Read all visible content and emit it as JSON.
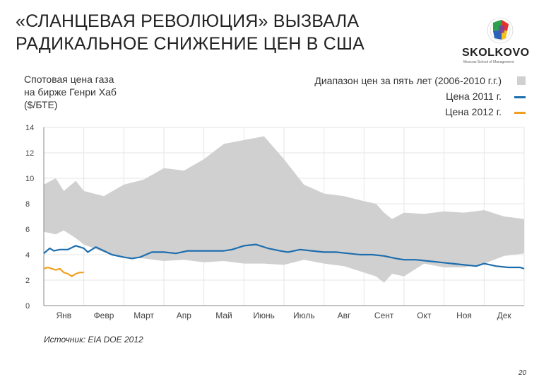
{
  "slide": {
    "title_line1": "«СЛАНЦЕВАЯ РЕВОЛЮЦИЯ» ВЫЗВАЛА",
    "title_line2": "РАДИКАЛЬНОЕ СНИЖЕНИЕ ЦЕН В США",
    "logo_text": "SKOLKOVO",
    "logo_subtext": "Moscow School of Management",
    "source": "Источник: EIA DOE 2012",
    "page_number": "20"
  },
  "chart_data": {
    "type": "area",
    "title_line1": "Спотовая цена газа",
    "title_line2": "на бирже Генри Хаб",
    "title_line3": "($/БТЕ)",
    "categories": [
      "Янв",
      "Февр",
      "Март",
      "Апр",
      "Май",
      "Июнь",
      "Июль",
      "Авг",
      "Сент",
      "Окт",
      "Ноя",
      "Дек"
    ],
    "yticks": [
      "0",
      "2",
      "4",
      "6",
      "8",
      "10",
      "12",
      "14"
    ],
    "ylim": [
      0,
      14
    ],
    "xlim": [
      0,
      12
    ],
    "grid": true,
    "legend_position": "top-right",
    "colors": {
      "range": "#d0d0d0",
      "y2011": "#1e6eae",
      "y2012": "#f0a020",
      "grid": "#e6e6e6"
    },
    "series": [
      {
        "name": "Диапазон цен за пять лет (2006-2010 г.г.)",
        "kind": "range",
        "x": [
          0,
          0.3,
          0.5,
          0.8,
          1.0,
          1.5,
          2.0,
          2.5,
          3.0,
          3.5,
          4.0,
          4.5,
          5.0,
          5.5,
          6.0,
          6.5,
          7.0,
          7.5,
          8.0,
          8.3,
          8.5,
          8.7,
          9.0,
          9.5,
          10.0,
          10.5,
          11.0,
          11.5,
          12.0
        ],
        "upper": [
          9.5,
          10.0,
          9.0,
          9.8,
          9.0,
          8.6,
          9.5,
          9.9,
          10.8,
          10.6,
          11.5,
          12.7,
          13.0,
          13.3,
          11.5,
          9.5,
          8.8,
          8.6,
          8.2,
          8.0,
          7.3,
          6.8,
          7.3,
          7.2,
          7.4,
          7.3,
          7.5,
          7.0,
          6.8
        ],
        "lower": [
          5.8,
          5.6,
          5.9,
          5.3,
          4.8,
          4.2,
          3.8,
          3.7,
          3.5,
          3.6,
          3.4,
          3.5,
          3.3,
          3.3,
          3.2,
          3.6,
          3.3,
          3.1,
          2.6,
          2.3,
          1.8,
          2.5,
          2.3,
          3.3,
          3.0,
          3.0,
          3.3,
          3.9,
          4.1
        ]
      },
      {
        "name": "Цена 2011 г.",
        "kind": "line",
        "x": [
          0,
          0.15,
          0.25,
          0.4,
          0.6,
          0.8,
          1.0,
          1.1,
          1.3,
          1.5,
          1.7,
          2.0,
          2.2,
          2.4,
          2.7,
          3.0,
          3.3,
          3.6,
          3.9,
          4.2,
          4.5,
          4.7,
          5.0,
          5.3,
          5.6,
          5.9,
          6.1,
          6.4,
          6.7,
          7.0,
          7.3,
          7.6,
          7.9,
          8.2,
          8.5,
          8.8,
          9.0,
          9.3,
          9.6,
          9.9,
          10.2,
          10.5,
          10.8,
          11.0,
          11.3,
          11.6,
          11.9,
          12.0
        ],
        "y": [
          4.1,
          4.5,
          4.3,
          4.4,
          4.4,
          4.7,
          4.5,
          4.2,
          4.6,
          4.3,
          4.0,
          3.8,
          3.7,
          3.8,
          4.2,
          4.2,
          4.1,
          4.3,
          4.3,
          4.3,
          4.3,
          4.4,
          4.7,
          4.8,
          4.5,
          4.3,
          4.2,
          4.4,
          4.3,
          4.2,
          4.2,
          4.1,
          4.0,
          4.0,
          3.9,
          3.7,
          3.6,
          3.6,
          3.5,
          3.4,
          3.3,
          3.2,
          3.1,
          3.3,
          3.1,
          3.0,
          3.0,
          2.9
        ]
      },
      {
        "name": "Цена 2012 г.",
        "kind": "line",
        "x": [
          0,
          0.1,
          0.2,
          0.3,
          0.4,
          0.5,
          0.6,
          0.7,
          0.8,
          0.9,
          1.0
        ],
        "y": [
          2.9,
          3.0,
          2.9,
          2.8,
          2.9,
          2.6,
          2.5,
          2.3,
          2.5,
          2.6,
          2.6
        ]
      }
    ]
  }
}
